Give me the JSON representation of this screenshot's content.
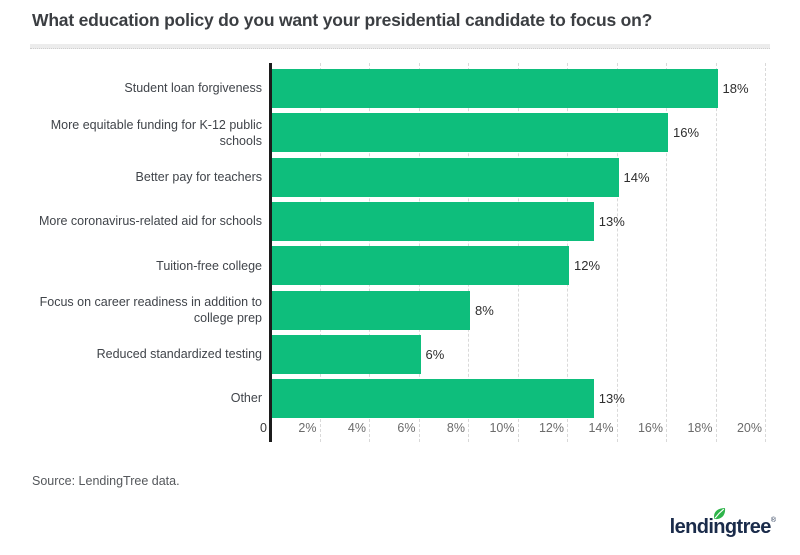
{
  "title": "What education policy do you want your presidential candidate to focus on?",
  "chart_data": {
    "type": "bar",
    "orientation": "horizontal",
    "title": "What education policy do you want your presidential candidate to focus on?",
    "categories": [
      "Student loan forgiveness",
      "More equitable funding for K-12 public schools",
      "Better pay for teachers",
      "More coronavirus-related aid for schools",
      "Tuition-free college",
      "Focus on career readiness in addition to college prep",
      "Reduced standardized testing",
      "Other"
    ],
    "values": [
      18,
      16,
      14,
      13,
      12,
      8,
      6,
      13
    ],
    "value_labels": [
      "18%",
      "16%",
      "14%",
      "13%",
      "12%",
      "8%",
      "6%",
      "13%"
    ],
    "x_ticks": [
      "0",
      "2%",
      "4%",
      "6%",
      "8%",
      "10%",
      "12%",
      "14%",
      "16%",
      "18%",
      "20%"
    ],
    "xlim": [
      0,
      20
    ],
    "xlabel": "",
    "ylabel": "",
    "grid": true,
    "legend": false,
    "bar_color": "#0ebe7c",
    "axis_color": "#1c1c1c",
    "gridline_color": "#d9d9d9"
  },
  "source": "Source: LendingTree data.",
  "logo": {
    "text": "lendingtree",
    "registered": "®",
    "brand_navy": "#1a2b4a",
    "leaf_green": "#2eb44a"
  }
}
